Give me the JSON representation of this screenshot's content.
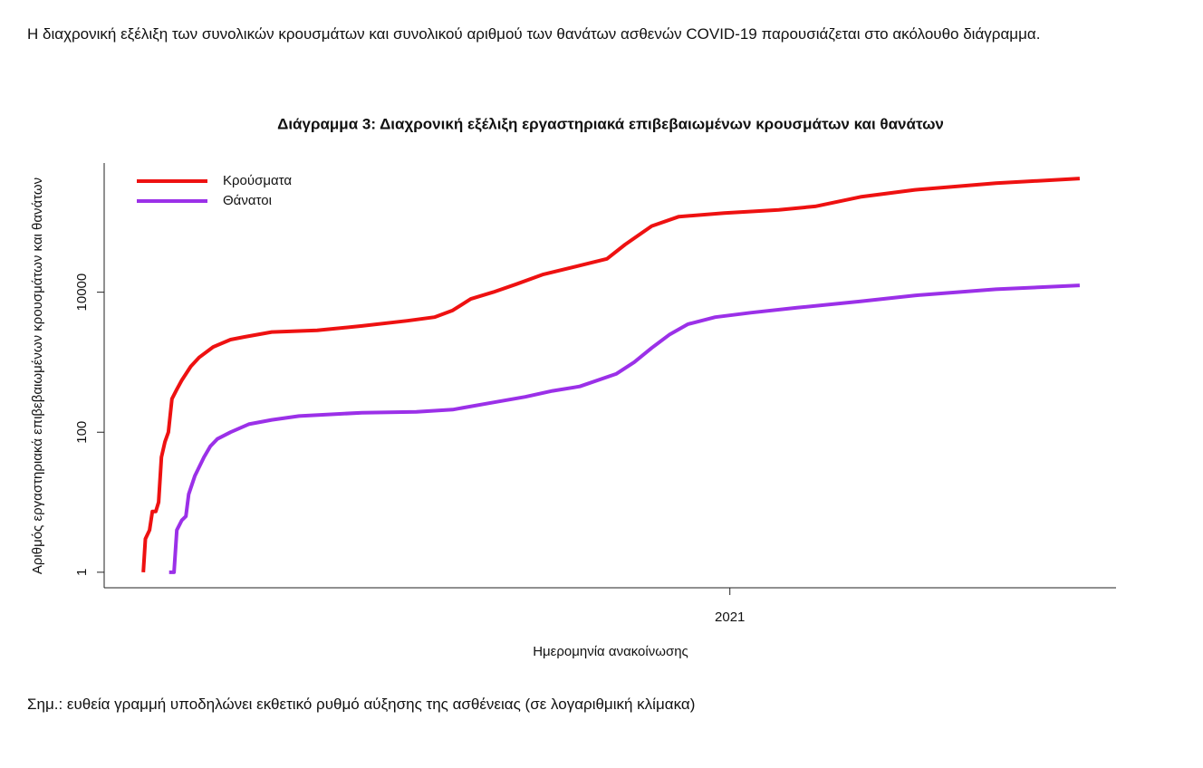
{
  "intro": "Η διαχρονική εξέλιξη των συνολικών κρουσμάτων και συνολικού αριθμού των θανάτων ασθενών COVID-19 παρουσιάζεται στο ακόλουθο διάγραμμα.",
  "note": "Σημ.: ευθεία γραμμή υποδηλώνει εκθετικό ρυθμό αύξησης της ασθένειας (σε λογαριθμική κλίμακα)",
  "chart_data": {
    "type": "line",
    "title": "Διάγραμμα 3: Διαχρονική εξέλιξη εργαστηριακά επιβεβαιωμένων κρουσμάτων και θανάτων",
    "xlabel": "Ημερομηνία ανακοίνωσης",
    "ylabel": "Αριθμός εργαστηριακά επιβεβαιωμένων κρουσμάτων και θανάτων",
    "xlim": [
      2020.104,
      2021.553
    ],
    "xticks": [
      2021
    ],
    "ylim": [
      0.6,
      700000
    ],
    "yticks": [
      1,
      100,
      10000
    ],
    "log_y": true,
    "legend": "top-left",
    "series": [
      {
        "name": "Κρούσματα",
        "color": "#ee1111",
        "x": [
          2020.16,
          2020.163,
          2020.169,
          2020.173,
          2020.178,
          2020.182,
          2020.186,
          2020.191,
          2020.196,
          2020.201,
          2020.208,
          2020.215,
          2020.228,
          2020.24,
          2020.26,
          2020.285,
          2020.305,
          2020.344,
          2020.409,
          2020.473,
          2020.538,
          2020.577,
          2020.603,
          2020.629,
          2020.661,
          2020.694,
          2020.733,
          2020.785,
          2020.824,
          2020.85,
          2020.888,
          2020.927,
          2020.992,
          2021.07,
          2021.122,
          2021.187,
          2021.265,
          2021.381,
          2021.501
        ],
        "values": [
          1,
          3,
          4,
          7.4,
          7.4,
          10,
          44,
          73,
          100,
          300,
          410,
          550,
          870,
          1170,
          1650,
          2100,
          2300,
          2700,
          2850,
          3300,
          3900,
          4400,
          5500,
          8000,
          10000,
          13000,
          18000,
          24000,
          30000,
          48000,
          88000,
          120000,
          135000,
          150000,
          168000,
          230000,
          290000,
          360000,
          420000
        ]
      },
      {
        "name": "Θάνατοι",
        "color": "#9b30e8",
        "x": [
          2020.197,
          2020.204,
          2020.208,
          2020.215,
          2020.221,
          2020.225,
          2020.234,
          2020.247,
          2020.256,
          2020.266,
          2020.285,
          2020.311,
          2020.344,
          2020.383,
          2020.473,
          2020.551,
          2020.603,
          2020.655,
          2020.707,
          2020.746,
          2020.785,
          2020.837,
          2020.863,
          2020.888,
          2020.914,
          2020.94,
          2020.979,
          2021.031,
          2021.096,
          2021.187,
          2021.265,
          2021.381,
          2021.501
        ],
        "values": [
          1,
          1,
          4,
          5.5,
          6.3,
          13,
          24,
          44,
          63,
          80,
          100,
          130,
          150,
          170,
          190,
          195,
          210,
          260,
          320,
          390,
          450,
          680,
          1000,
          1600,
          2500,
          3500,
          4400,
          5100,
          6000,
          7400,
          9000,
          11000,
          12500
        ]
      }
    ]
  }
}
